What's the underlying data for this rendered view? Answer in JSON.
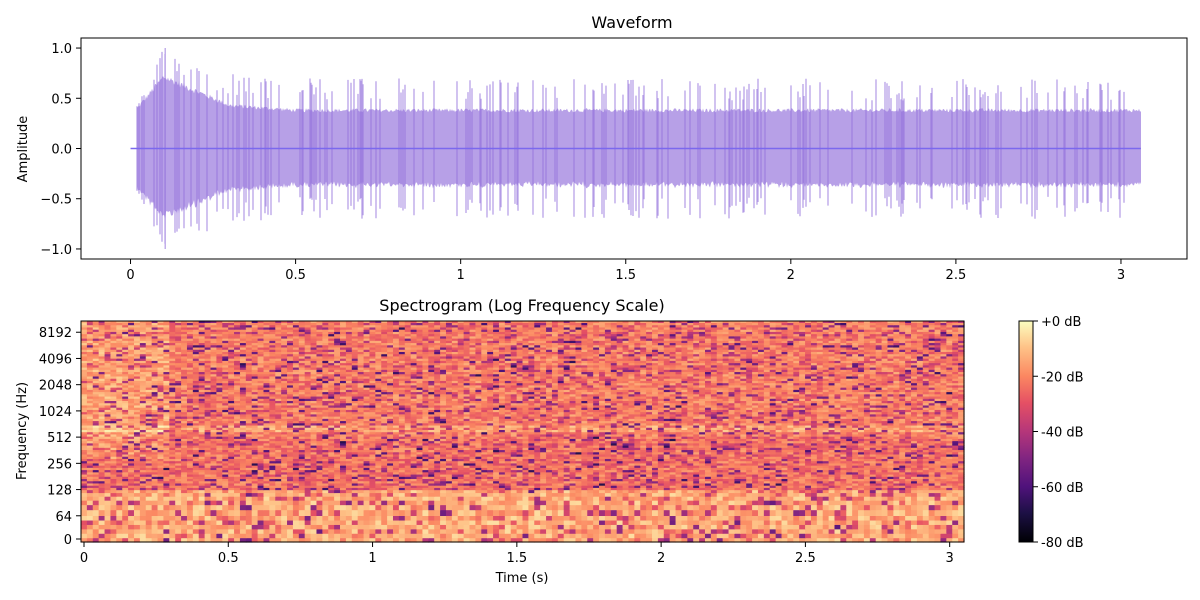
{
  "figure": {
    "background": "#ffffff"
  },
  "chart_data": [
    {
      "type": "line",
      "title": "Waveform",
      "xlabel": "",
      "ylabel": "Amplitude",
      "xlim": [
        -0.15,
        3.2
      ],
      "ylim": [
        -1.1,
        1.1
      ],
      "xticks": [
        0,
        0.5,
        1,
        1.5,
        2,
        2.5,
        3
      ],
      "xtick_labels": [
        "0",
        "0.5",
        "1",
        "1.5",
        "2",
        "2.5",
        "3"
      ],
      "yticks": [
        -1.0,
        -0.5,
        0.0,
        0.5,
        1.0
      ],
      "ytick_labels": [
        "−1.0",
        "−0.5",
        "0.0",
        "0.5",
        "1.0"
      ],
      "color": "#9370db",
      "line_alpha": 0.7,
      "grid": false,
      "duration_s": 3.06,
      "onset_s": 0.02,
      "envelope": {
        "t": [
          0.02,
          0.1,
          0.3,
          0.5,
          1.0,
          2.0,
          3.06
        ],
        "body_amplitude": [
          0.42,
          0.75,
          0.45,
          0.4,
          0.4,
          0.4,
          0.4
        ],
        "peak_amplitude": [
          0.42,
          1.0,
          0.75,
          0.7,
          0.7,
          0.7,
          0.7
        ]
      }
    },
    {
      "type": "heatmap",
      "title": "Spectrogram (Log Frequency Scale)",
      "xlabel": "Time (s)",
      "ylabel": "Frequency (Hz)",
      "xlim": [
        0,
        3.06
      ],
      "xticks": [
        0,
        0.5,
        1,
        1.5,
        2,
        2.5,
        3
      ],
      "xtick_labels": [
        "0",
        "0.5",
        "1",
        "1.5",
        "2",
        "2.5",
        "3"
      ],
      "yscale": "symlog",
      "ylim": [
        0,
        11025
      ],
      "yticks": [
        0,
        64,
        128,
        256,
        512,
        1024,
        2048,
        4096,
        8192
      ],
      "ytick_labels": [
        "0",
        "64",
        "128",
        "256",
        "512",
        "1024",
        "2048",
        "4096",
        "8192"
      ],
      "colormap": "magma",
      "colorbar": {
        "range_db": [
          -80,
          0
        ],
        "ticks": [
          0,
          -20,
          -40,
          -60,
          -80
        ],
        "tick_labels": [
          "+0 dB",
          "-20 dB",
          "-40 dB",
          "-60 dB",
          "-80 dB"
        ]
      },
      "typical_level_db": {
        "low_band_0_128hz": -12,
        "band_128_512hz": -22,
        "band_512_8192hz": -20
      }
    }
  ]
}
